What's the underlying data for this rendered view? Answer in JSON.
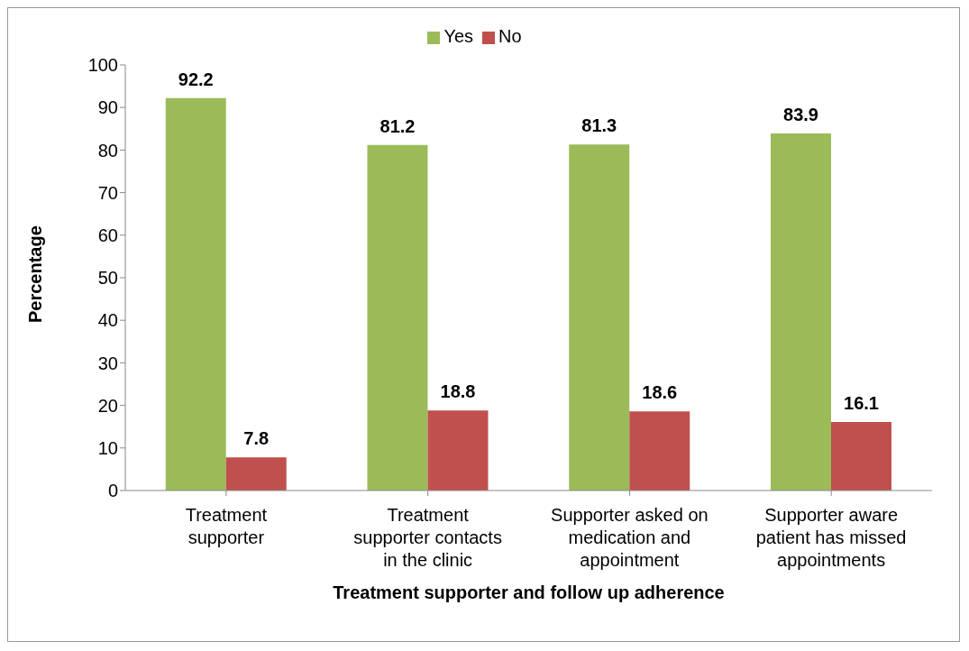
{
  "chart_data": {
    "type": "bar",
    "xlabel": "Treatment supporter and follow up adherence",
    "ylabel": "Percentage",
    "categories": [
      "Treatment supporter",
      "Treatment supporter contacts in the clinic",
      "Supporter asked on medication and appointment",
      "Supporter aware patient has missed appointments"
    ],
    "series": [
      {
        "name": "Yes",
        "color": "#9bbb59",
        "values": [
          92.2,
          81.2,
          81.3,
          83.9
        ]
      },
      {
        "name": "No",
        "color": "#c0504d",
        "values": [
          7.8,
          18.8,
          18.6,
          16.1
        ]
      }
    ],
    "ylim": [
      0,
      100
    ],
    "yticks": [
      0,
      10,
      20,
      30,
      40,
      50,
      60,
      70,
      80,
      90,
      100
    ],
    "grid": false,
    "legend": "top",
    "data_labels": true
  }
}
